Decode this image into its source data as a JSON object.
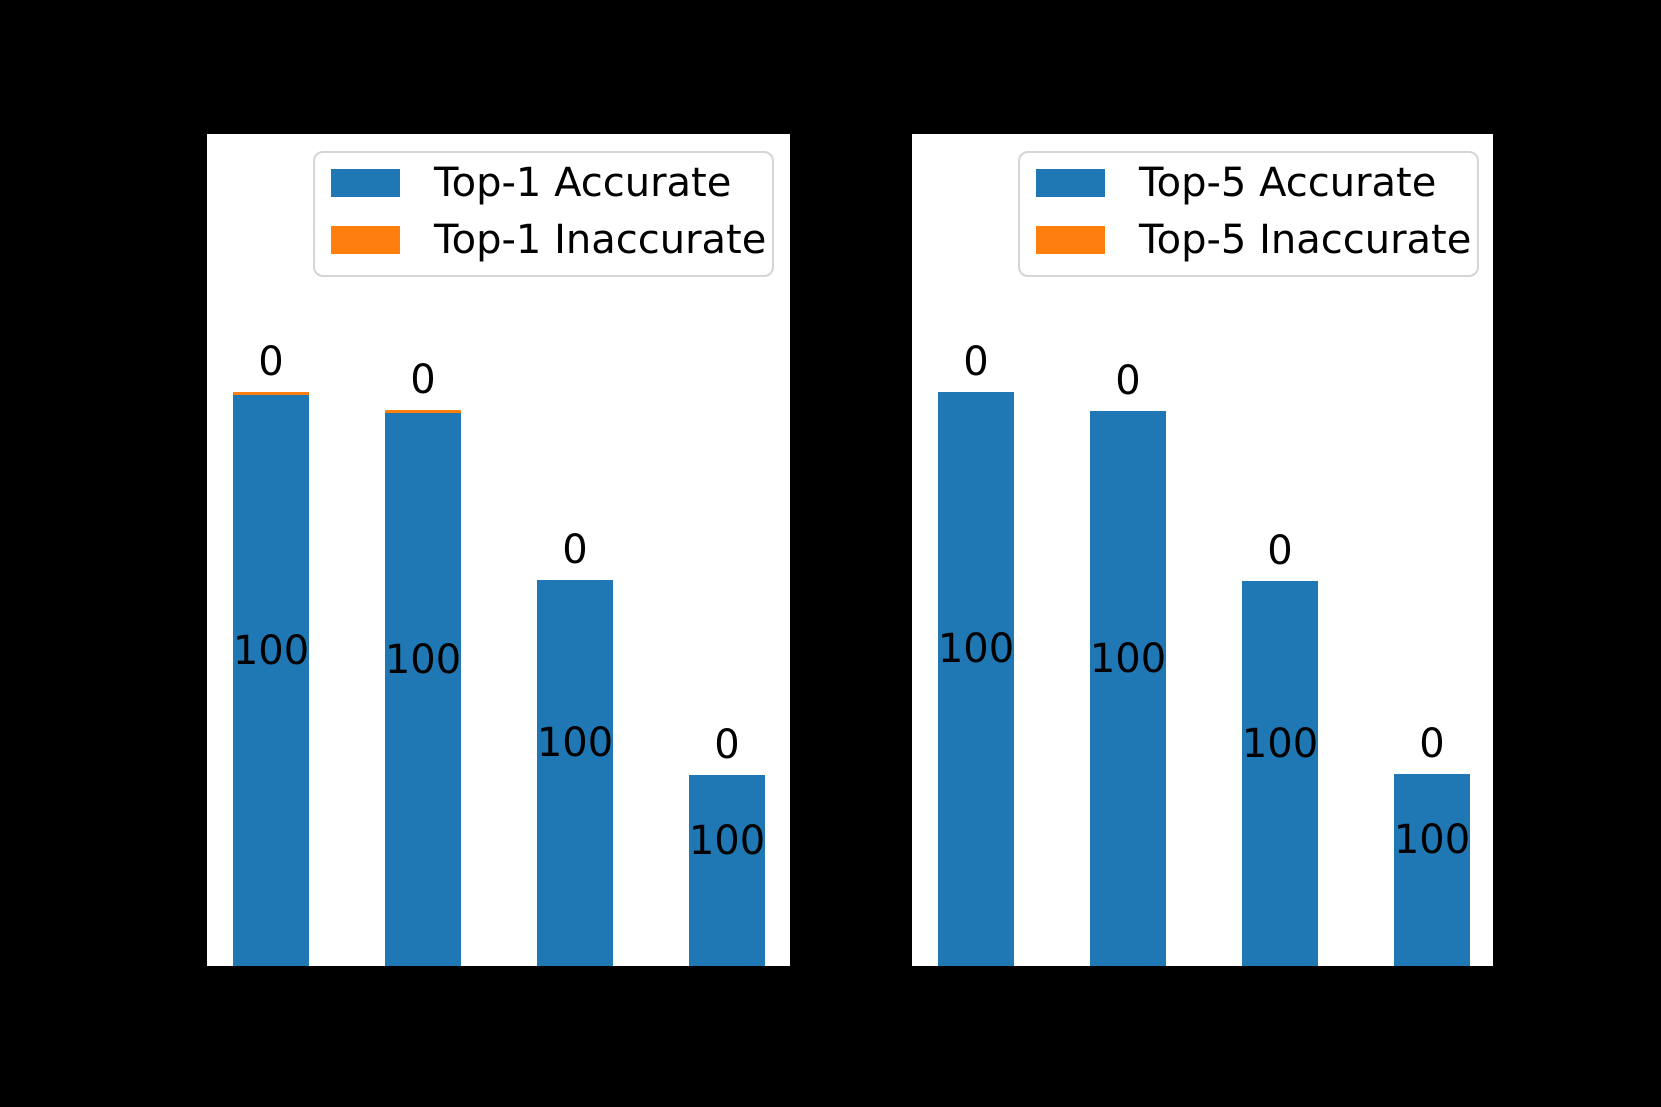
{
  "figure": {
    "background_color": "#000000",
    "panel_background_color": "#ffffff",
    "text_color": "#000000",
    "legend_border_color": "#d5d5d5"
  },
  "chart_data": [
    {
      "type": "bar",
      "stacked": true,
      "n_bars": 4,
      "x_tick_labels_visible": false,
      "y_tick_labels_visible": false,
      "legend_position": "upper right",
      "series": [
        {
          "name": "Top-1 Accurate",
          "color": "#1f77b4",
          "heights_axis_fraction": [
            0.6863,
            0.6647,
            0.4639,
            0.2296
          ],
          "value_labels": [
            "100",
            "100",
            "100",
            "100"
          ]
        },
        {
          "name": "Top-1 Inaccurate",
          "color": "#ff7f0e",
          "heights_axis_fraction": [
            0.0036,
            0.0036,
            0,
            0
          ],
          "value_labels": [
            "0",
            "0",
            "0",
            "0"
          ]
        }
      ]
    },
    {
      "type": "bar",
      "stacked": true,
      "n_bars": 4,
      "x_tick_labels_visible": false,
      "y_tick_labels_visible": false,
      "legend_position": "upper right",
      "series": [
        {
          "name": "Top-5 Accurate",
          "color": "#1f77b4",
          "heights_axis_fraction": [
            0.6899,
            0.6671,
            0.4627,
            0.2308
          ],
          "value_labels": [
            "100",
            "100",
            "100",
            "100"
          ]
        },
        {
          "name": "Top-5 Inaccurate",
          "color": "#ff7f0e",
          "heights_axis_fraction": [
            0,
            0,
            0,
            0
          ],
          "value_labels": [
            "0",
            "0",
            "0",
            "0"
          ]
        }
      ]
    }
  ]
}
